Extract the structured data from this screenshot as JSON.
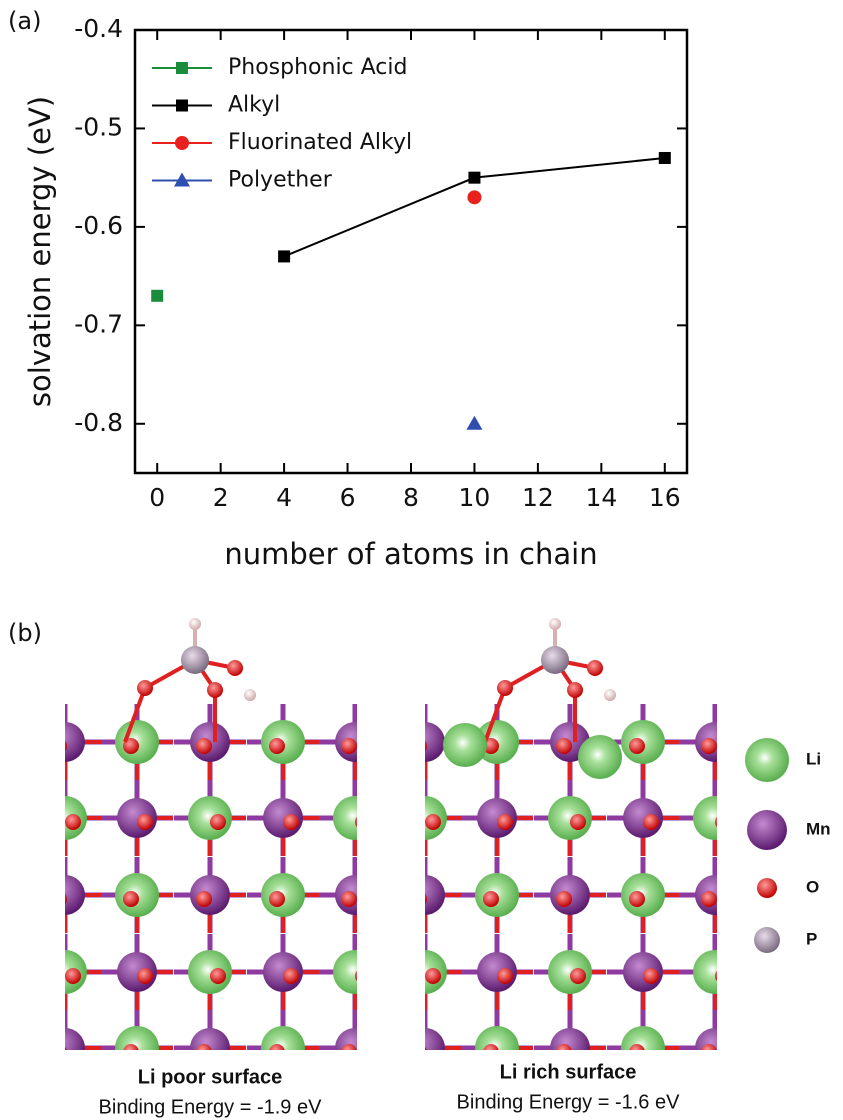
{
  "panel_labels": [
    "(a)",
    "(b)"
  ],
  "chart_data": {
    "type": "scatter",
    "xlabel": "number of atoms in chain",
    "ylabel": "solvation energy (eV)",
    "xlim": [
      -0.7,
      16.7
    ],
    "xticks": [
      0,
      2,
      4,
      6,
      8,
      10,
      12,
      14,
      16
    ],
    "ylim": [
      -0.85,
      -0.4
    ],
    "yticks": [
      -0.4,
      -0.5,
      -0.6,
      -0.7,
      -0.8
    ],
    "legend": "upper left",
    "series": [
      {
        "name": "Phosphonic Acid",
        "color": "#1b8c3c",
        "marker": "square",
        "line": false,
        "x": [
          0
        ],
        "values": [
          -0.67
        ]
      },
      {
        "name": "Alkyl",
        "color": "#000000",
        "marker": "square",
        "line": true,
        "x": [
          4,
          10,
          16
        ],
        "values": [
          -0.63,
          -0.55,
          -0.53
        ]
      },
      {
        "name": "Fluorinated Alkyl",
        "color": "#e8201e",
        "marker": "circle",
        "line": false,
        "x": [
          10
        ],
        "values": [
          -0.57
        ]
      },
      {
        "name": "Polyether",
        "color": "#2f4fb0",
        "marker": "triangle",
        "line": false,
        "x": [
          10
        ],
        "values": [
          -0.8
        ]
      }
    ]
  },
  "structures": [
    {
      "title": "Li poor surface",
      "caption": "Binding Energy = -1.9 eV"
    },
    {
      "title": "Li rich surface",
      "caption": "Binding Energy = -1.6 eV"
    }
  ],
  "atom_legend": [
    "Li",
    "Mn",
    "O",
    "P"
  ]
}
